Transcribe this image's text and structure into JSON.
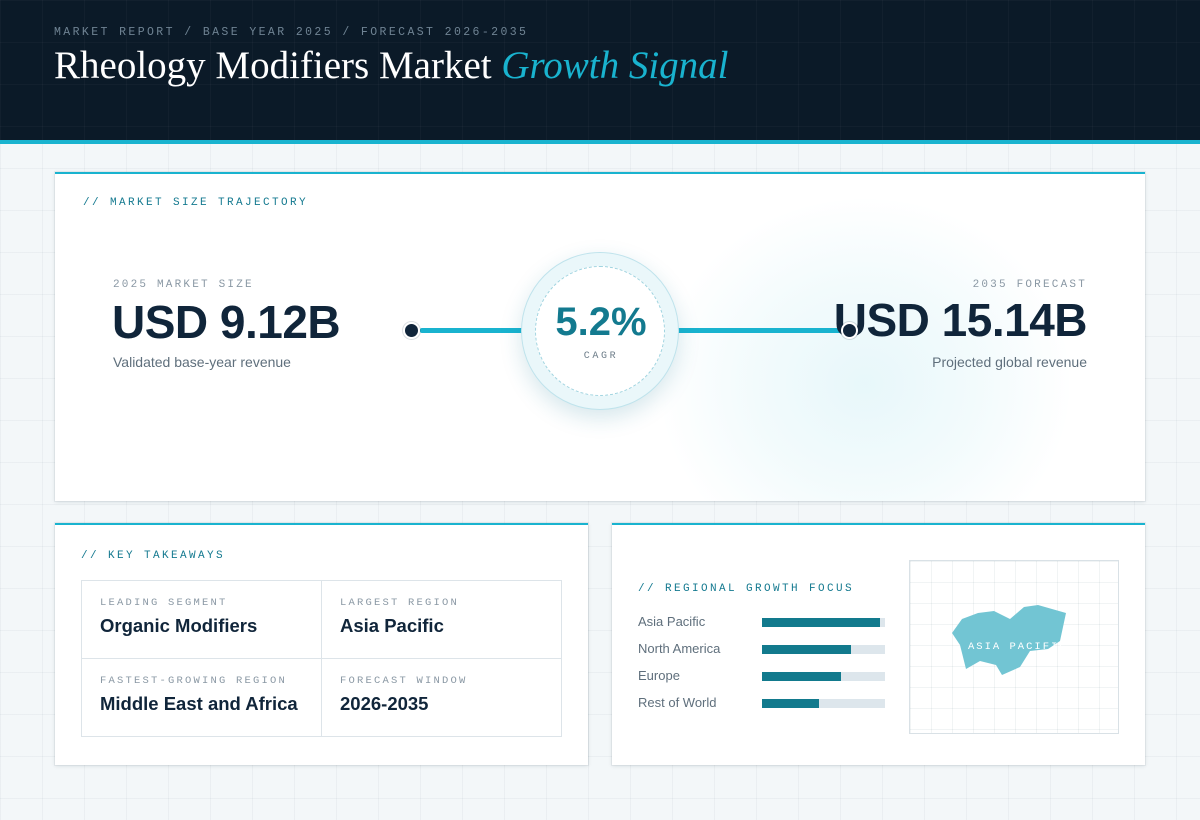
{
  "header": {
    "kicker": "MARKET REPORT / BASE YEAR 2025 / FORECAST 2026-2035",
    "title_main": "Rheology Modifiers Market",
    "title_accent": "Growth Signal"
  },
  "trajectory": {
    "label": "// MARKET SIZE TRAJECTORY",
    "base": {
      "eyebrow": "2025 MARKET SIZE",
      "value": "USD 9.12B",
      "sub": "Validated base-year revenue"
    },
    "forecast": {
      "eyebrow": "2035 FORECAST",
      "value": "USD 15.14B",
      "sub": "Projected global revenue"
    },
    "cagr": {
      "value": "5.2%",
      "label": "CAGR"
    }
  },
  "takeaways": {
    "label": "// KEY TAKEAWAYS",
    "items": [
      {
        "eyebrow": "LEADING SEGMENT",
        "value": "Organic Modifiers"
      },
      {
        "eyebrow": "LARGEST REGION",
        "value": "Asia Pacific"
      },
      {
        "eyebrow": "FASTEST-GROWING REGION",
        "value": "Middle East and Africa"
      },
      {
        "eyebrow": "FORECAST WINDOW",
        "value": "2026-2035"
      }
    ]
  },
  "regional": {
    "label": "// REGIONAL GROWTH FOCUS",
    "rows": [
      {
        "name": "Asia Pacific",
        "level": 0.96
      },
      {
        "name": "North America",
        "level": 0.72
      },
      {
        "name": "Europe",
        "level": 0.64
      },
      {
        "name": "Rest of World",
        "level": 0.46
      }
    ],
    "map_label": "ASIA PACIFIC"
  },
  "colors": {
    "accent": "#19b3cf",
    "navy": "#0b1a28",
    "bar_fill": "#127a8d",
    "map_shape": "#72c5d3"
  }
}
